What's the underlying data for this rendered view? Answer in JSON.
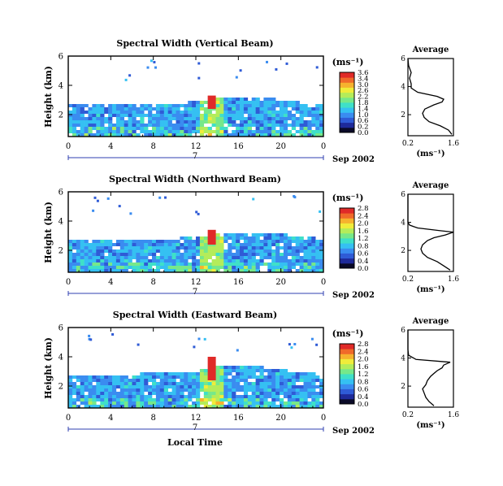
{
  "figure": {
    "xlabel": "Local Time",
    "date_label": "Sep 2002",
    "day_label": "7",
    "units_label": "(ms⁻¹)",
    "colormap": [
      "#0a0a28",
      "#1e2a9a",
      "#2f5bd6",
      "#3a8cf0",
      "#35c0f2",
      "#3fe0c8",
      "#76e88a",
      "#b4ec5a",
      "#f0ec3a",
      "#f6b22e",
      "#f06a2a",
      "#e02a28"
    ]
  },
  "chart_data": [
    {
      "type": "heatmap",
      "title": "Spectral Width (Vertical Beam)",
      "ylabel": "Height (km)",
      "x_ticks": [
        "0",
        "4",
        "8",
        "12",
        "16",
        "20",
        "0"
      ],
      "y_ticks": [
        "2",
        "4",
        "6"
      ],
      "xlim": [
        0,
        24
      ],
      "ylim": [
        0.5,
        6
      ],
      "colorbar_ticks": [
        "3.6",
        "3.4",
        "3.0",
        "2.6",
        "2.2",
        "1.8",
        "1.4",
        "1.0",
        "0.6",
        "0.2",
        "0.0"
      ],
      "layer_top_km": [
        2.7,
        2.6,
        2.7,
        2.8,
        2.8,
        2.7,
        2.9,
        3.1,
        3.2,
        3.2,
        3.0,
        2.8,
        2.7
      ],
      "spike": {
        "time_h": 13.5,
        "top_km": 3.3,
        "value": 3.5
      },
      "average": {
        "title": "Average",
        "xlabel": "(ms⁻¹)",
        "x_ticks": [
          "0.2",
          "1.6"
        ],
        "y_ticks": [
          "2",
          "4",
          "6"
        ],
        "xlim": [
          0.2,
          1.6
        ],
        "height_km": [
          0.6,
          0.9,
          1.2,
          1.5,
          1.8,
          2.1,
          2.4,
          2.7,
          2.9,
          3.1,
          3.3,
          3.6,
          3.9,
          4.2,
          4.6,
          5.0,
          5.5,
          6.0
        ],
        "width": [
          1.55,
          1.45,
          1.2,
          0.85,
          0.7,
          0.65,
          0.72,
          1.0,
          1.25,
          1.3,
          1.1,
          0.5,
          0.3,
          0.3,
          0.25,
          0.3,
          0.22,
          0.2
        ]
      }
    },
    {
      "type": "heatmap",
      "title": "Spectral Width (Northward Beam)",
      "ylabel": "Height (km)",
      "x_ticks": [
        "0",
        "4",
        "8",
        "12",
        "16",
        "20",
        "0"
      ],
      "y_ticks": [
        "2",
        "4",
        "6"
      ],
      "xlim": [
        0,
        24
      ],
      "ylim": [
        0.5,
        6
      ],
      "colorbar_ticks": [
        "2.8",
        "2.4",
        "2.0",
        "1.6",
        "1.2",
        "0.8",
        "0.6",
        "0.4",
        "0.0"
      ],
      "layer_top_km": [
        2.7,
        2.6,
        2.7,
        2.8,
        2.8,
        2.8,
        2.9,
        3.1,
        3.2,
        3.2,
        3.1,
        2.9,
        2.8
      ],
      "spike": {
        "time_h": 13.5,
        "top_km": 3.4,
        "value": 2.8
      },
      "average": {
        "title": "Average",
        "xlabel": "(ms⁻¹)",
        "x_ticks": [
          "0.2",
          "1.6"
        ],
        "y_ticks": [
          "2",
          "4",
          "6"
        ],
        "xlim": [
          0.2,
          1.6
        ],
        "height_km": [
          0.6,
          0.9,
          1.2,
          1.5,
          1.8,
          2.1,
          2.4,
          2.7,
          2.9,
          3.1,
          3.3,
          3.4,
          3.6,
          3.8,
          4.0,
          4.5,
          5.0,
          6.0
        ],
        "width": [
          1.5,
          1.3,
          1.1,
          0.8,
          0.65,
          0.6,
          0.65,
          0.8,
          1.0,
          1.35,
          1.6,
          1.2,
          0.5,
          0.25,
          0.2,
          0.2,
          0.2,
          0.2
        ]
      }
    },
    {
      "type": "heatmap",
      "title": "Spectral Width (Eastward Beam)",
      "ylabel": "Height (km)",
      "x_ticks": [
        "0",
        "4",
        "8",
        "12",
        "16",
        "20",
        "0"
      ],
      "y_ticks": [
        "2",
        "4",
        "6"
      ],
      "xlim": [
        0,
        24
      ],
      "ylim": [
        0.5,
        6
      ],
      "colorbar_ticks": [
        "2.8",
        "2.4",
        "2.0",
        "1.6",
        "1.2",
        "0.8",
        "0.6",
        "0.4",
        "0.0"
      ],
      "layer_top_km": [
        2.8,
        2.7,
        2.8,
        2.8,
        2.9,
        2.9,
        3.0,
        3.3,
        3.4,
        3.3,
        3.1,
        2.9,
        2.8
      ],
      "spike": {
        "time_h": 13.5,
        "top_km": 4.0,
        "value": 2.8
      },
      "average": {
        "title": "Average",
        "xlabel": "(ms⁻¹)",
        "x_ticks": [
          "0.2",
          "1.6"
        ],
        "y_ticks": [
          "2",
          "4",
          "6"
        ],
        "xlim": [
          0.2,
          1.6
        ],
        "height_km": [
          0.6,
          0.9,
          1.2,
          1.5,
          1.8,
          2.1,
          2.4,
          2.7,
          2.9,
          3.1,
          3.3,
          3.5,
          3.7,
          3.9,
          4.2,
          4.6,
          5.2,
          6.0
        ],
        "width": [
          1.0,
          0.85,
          0.75,
          0.7,
          0.65,
          0.75,
          0.8,
          0.9,
          1.0,
          1.1,
          1.25,
          1.3,
          1.5,
          0.45,
          0.22,
          0.2,
          0.2,
          0.2
        ]
      }
    }
  ]
}
